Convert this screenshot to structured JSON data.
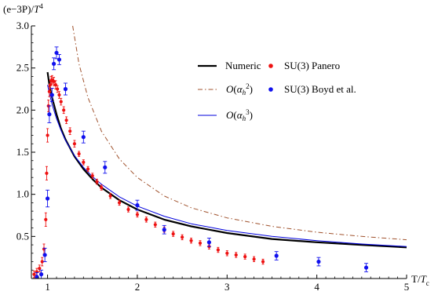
{
  "chart_data": {
    "type": "scatter",
    "title": "",
    "ylabel_parts": [
      "(e−3P)/",
      "T",
      "4"
    ],
    "xlabel_parts": [
      "T/",
      "T",
      "c"
    ],
    "xlim": [
      0.82,
      5.0
    ],
    "ylim": [
      0.0,
      3.0
    ],
    "x_ticks": [
      1,
      2,
      3,
      4,
      5
    ],
    "x_tick_labels": [
      "1",
      "2",
      "3",
      "4",
      "5"
    ],
    "y_ticks": [
      0.5,
      1.0,
      1.5,
      2.0,
      2.5,
      3.0
    ],
    "y_tick_labels": [
      "0.5",
      "1.0",
      "1.5",
      "2.0",
      "2.5",
      "3.0"
    ],
    "legend_position": "top-right",
    "colors": {
      "numeric": "#000000",
      "alpha2": "#a0522d",
      "alpha3": "#0000dd",
      "panero": "#ee1111",
      "boyd": "#1111ee"
    },
    "series": [
      {
        "name": "Numeric",
        "kind": "line",
        "x": [
          1.0,
          1.02,
          1.05,
          1.1,
          1.15,
          1.2,
          1.3,
          1.4,
          1.5,
          1.6,
          1.8,
          2.0,
          2.3,
          2.6,
          3.0,
          3.5,
          4.0,
          4.5,
          5.0
        ],
        "y": [
          2.45,
          2.3,
          2.15,
          1.95,
          1.78,
          1.65,
          1.45,
          1.3,
          1.18,
          1.08,
          0.93,
          0.82,
          0.7,
          0.62,
          0.54,
          0.47,
          0.43,
          0.4,
          0.37
        ]
      },
      {
        "name": "O(αh²)",
        "kind": "dashdot",
        "x": [
          1.28,
          1.35,
          1.45,
          1.6,
          1.8,
          2.0,
          2.3,
          2.6,
          3.0,
          3.5,
          4.0,
          4.5,
          5.0
        ],
        "y": [
          3.0,
          2.55,
          2.15,
          1.75,
          1.42,
          1.2,
          0.98,
          0.84,
          0.72,
          0.62,
          0.55,
          0.5,
          0.46
        ]
      },
      {
        "name": "O(αh³)",
        "kind": "line",
        "x": [
          1.0,
          1.02,
          1.05,
          1.1,
          1.15,
          1.2,
          1.3,
          1.4,
          1.5,
          1.6,
          1.8,
          2.0,
          2.3,
          2.6,
          3.0,
          3.5,
          4.0,
          4.5,
          5.0
        ],
        "y": [
          2.3,
          2.2,
          2.07,
          1.9,
          1.76,
          1.64,
          1.46,
          1.32,
          1.21,
          1.12,
          0.97,
          0.86,
          0.74,
          0.65,
          0.57,
          0.5,
          0.45,
          0.41,
          0.38
        ]
      },
      {
        "name": "SU(3) Panero",
        "kind": "errorbar",
        "x": [
          0.85,
          0.88,
          0.91,
          0.94,
          0.96,
          0.98,
          0.99,
          1.0,
          1.01,
          1.02,
          1.03,
          1.04,
          1.05,
          1.07,
          1.09,
          1.11,
          1.13,
          1.15,
          1.18,
          1.21,
          1.25,
          1.3,
          1.35,
          1.4,
          1.45,
          1.5,
          1.55,
          1.6,
          1.7,
          1.8,
          1.9,
          2.0,
          2.1,
          2.2,
          2.3,
          2.4,
          2.5,
          2.6,
          2.7,
          2.8,
          2.9,
          3.0,
          3.1,
          3.2,
          3.3,
          3.4
        ],
        "y": [
          0.05,
          0.08,
          0.12,
          0.2,
          0.35,
          0.7,
          1.25,
          1.7,
          2.05,
          2.22,
          2.3,
          2.35,
          2.36,
          2.34,
          2.3,
          2.25,
          2.18,
          2.1,
          2.0,
          1.88,
          1.75,
          1.6,
          1.48,
          1.38,
          1.3,
          1.22,
          1.15,
          1.08,
          0.98,
          0.9,
          0.82,
          0.76,
          0.7,
          0.64,
          0.58,
          0.53,
          0.49,
          0.45,
          0.42,
          0.38,
          0.34,
          0.3,
          0.28,
          0.26,
          0.23,
          0.2
        ],
        "err": [
          0.04,
          0.04,
          0.04,
          0.05,
          0.06,
          0.08,
          0.08,
          0.08,
          0.07,
          0.06,
          0.05,
          0.05,
          0.05,
          0.05,
          0.05,
          0.04,
          0.04,
          0.04,
          0.04,
          0.04,
          0.04,
          0.04,
          0.03,
          0.03,
          0.03,
          0.03,
          0.03,
          0.03,
          0.03,
          0.03,
          0.03,
          0.03,
          0.03,
          0.03,
          0.03,
          0.03,
          0.03,
          0.03,
          0.03,
          0.03,
          0.03,
          0.03,
          0.03,
          0.03,
          0.03,
          0.03
        ]
      },
      {
        "name": "SU(3) Boyd et al.",
        "kind": "errorbar",
        "x": [
          0.88,
          0.93,
          0.97,
          1.0,
          1.02,
          1.05,
          1.07,
          1.1,
          1.13,
          1.2,
          1.4,
          1.64,
          2.0,
          2.3,
          2.8,
          3.55,
          4.02,
          4.55
        ],
        "y": [
          0.02,
          0.05,
          0.28,
          0.95,
          1.95,
          2.18,
          2.55,
          2.68,
          2.6,
          2.25,
          1.68,
          1.32,
          0.87,
          0.58,
          0.43,
          0.27,
          0.2,
          0.13
        ],
        "err": [
          0.05,
          0.05,
          0.08,
          0.1,
          0.1,
          0.08,
          0.07,
          0.07,
          0.06,
          0.07,
          0.07,
          0.07,
          0.06,
          0.05,
          0.05,
          0.05,
          0.05,
          0.05
        ]
      }
    ],
    "legend": [
      {
        "label": "Numeric",
        "kind": "line",
        "color_key": "numeric",
        "order": 0
      },
      {
        "label": "SU(3) Panero",
        "kind": "dot",
        "color_key": "panero",
        "order": 1
      },
      {
        "label": "O(αh²)",
        "kind": "dashdot",
        "color_key": "alpha2",
        "order": 2
      },
      {
        "label": "SU(3) Boyd et al.",
        "kind": "dot",
        "color_key": "boyd",
        "order": 3
      },
      {
        "label": "O(αh³)",
        "kind": "line",
        "color_key": "alpha3",
        "order": 4
      }
    ],
    "legend_math": {
      "alpha2": {
        "pre": "O",
        "greek": "α",
        "sub": "h",
        "sup": "2"
      },
      "alpha3": {
        "pre": "O",
        "greek": "α",
        "sub": "h",
        "sup": "3"
      }
    }
  }
}
